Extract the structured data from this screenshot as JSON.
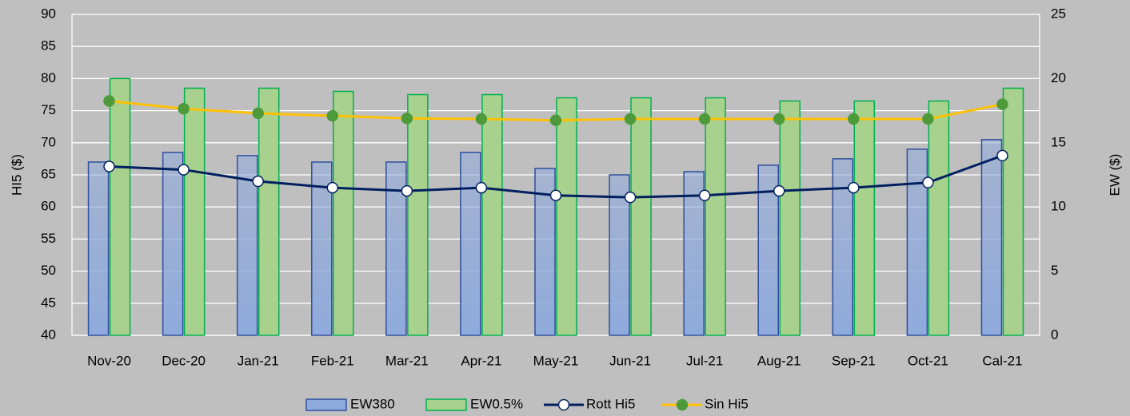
{
  "chart_data": {
    "type": "combo",
    "categories": [
      "Nov-20",
      "Dec-20",
      "Jan-21",
      "Feb-21",
      "Mar-21",
      "Apr-21",
      "May-21",
      "Jun-21",
      "Jul-21",
      "Aug-21",
      "Sep-21",
      "Oct-21",
      "Cal-21"
    ],
    "y_label": "HI5 ($)",
    "y2_label": "EW ($)",
    "ylim": [
      40,
      90
    ],
    "yticks": [
      40,
      45,
      50,
      55,
      60,
      65,
      70,
      75,
      80,
      85,
      90
    ],
    "y2lim": [
      0,
      25
    ],
    "y2ticks": [
      0,
      5,
      10,
      15,
      20,
      25
    ],
    "grid": true,
    "legend": "bottom",
    "series": [
      {
        "name": "EW380",
        "type": "bar",
        "axis": "y2",
        "color": "#8faadc",
        "edge_color": "#2f4f9f",
        "values": [
          13.5,
          14.25,
          14,
          13.5,
          13.5,
          14.25,
          13,
          12.5,
          12.75,
          13.25,
          13.75,
          14.5,
          15.25
        ]
      },
      {
        "name": "EW0.5%",
        "type": "bar",
        "axis": "y2",
        "color": "#a9d18e",
        "edge_color": "#00b050",
        "values": [
          20,
          19.25,
          19.25,
          19,
          18.75,
          18.75,
          18.5,
          18.5,
          18.5,
          18.25,
          18.25,
          18.25,
          19.25
        ]
      },
      {
        "name": "Rott Hi5",
        "type": "line",
        "color": "#002060",
        "marker_color": "#ffffff",
        "values": [
          66.3,
          65.8,
          64,
          63,
          62.5,
          63,
          61.8,
          61.5,
          61.8,
          62.5,
          63,
          63.8,
          68
        ]
      },
      {
        "name": "Sin Hi5",
        "type": "line",
        "color": "#ffc000",
        "marker_color": "#4e9a3a",
        "values": [
          76.5,
          75.3,
          74.6,
          74.2,
          73.8,
          73.7,
          73.5,
          73.7,
          73.7,
          73.7,
          73.7,
          73.7,
          76
        ]
      }
    ]
  }
}
